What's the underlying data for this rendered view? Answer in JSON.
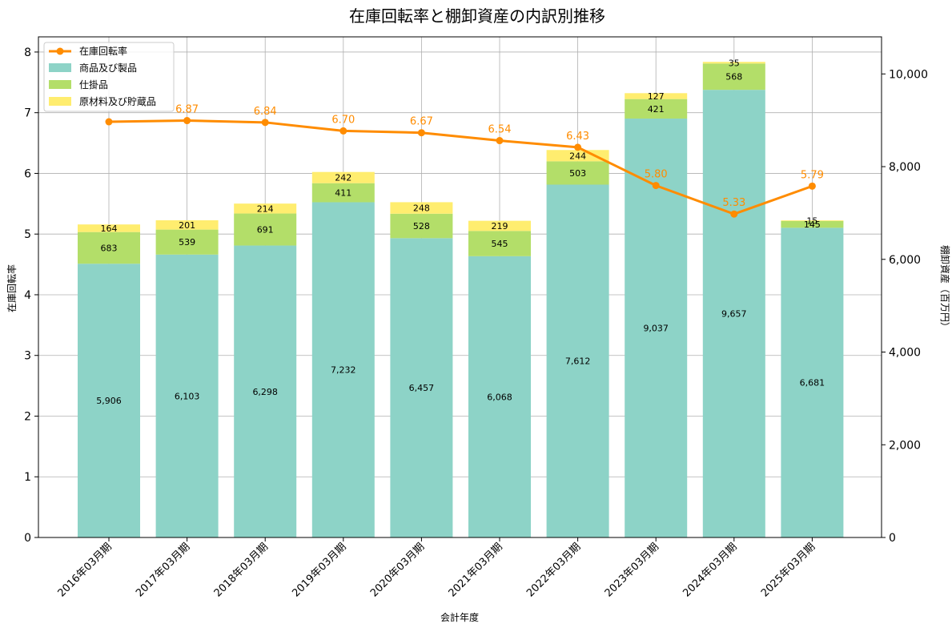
{
  "chart_data": {
    "type": "bar",
    "title": "在庫回転率と棚卸資産の内訳別推移",
    "xlabel": "会計年度",
    "ylabel_left": "在庫回転率",
    "ylabel_right": "棚卸資産（百万円）",
    "categories": [
      "2016年03月期",
      "2017年03月期",
      "2018年03月期",
      "2019年03月期",
      "2020年03月期",
      "2021年03月期",
      "2022年03月期",
      "2023年03月期",
      "2024年03月期",
      "2025年03月期"
    ],
    "bar_series": [
      {
        "name": "商品及び製品",
        "color": "#8dd3c7",
        "values": [
          5906,
          6103,
          6298,
          7232,
          6457,
          6068,
          7612,
          9037,
          9657,
          6681
        ]
      },
      {
        "name": "仕掛品",
        "color": "#b3de69",
        "values": [
          683,
          539,
          691,
          411,
          528,
          545,
          503,
          421,
          568,
          145
        ]
      },
      {
        "name": "原材料及び貯蔵品",
        "color": "#ffed6f",
        "values": [
          164,
          201,
          214,
          242,
          248,
          219,
          244,
          127,
          35,
          15
        ]
      }
    ],
    "line_series": {
      "name": "在庫回転率",
      "color": "#ff8c00",
      "values": [
        6.85,
        6.87,
        6.84,
        6.7,
        6.67,
        6.54,
        6.43,
        5.8,
        5.33,
        5.79
      ]
    },
    "line_labels": [
      "",
      "6.87",
      "6.84",
      "6.70",
      "6.67",
      "6.54",
      "6.43",
      "5.80",
      "5.33",
      "5.79"
    ],
    "bar_labels": [
      [
        "5,906",
        "6,103",
        "6,298",
        "7,232",
        "6,457",
        "6,068",
        "7,612",
        "9,037",
        "9,657",
        "6,681"
      ],
      [
        "683",
        "539",
        "691",
        "411",
        "528",
        "545",
        "503",
        "421",
        "568",
        "145"
      ],
      [
        "164",
        "201",
        "214",
        "242",
        "248",
        "219",
        "244",
        "127",
        "35",
        "15"
      ]
    ],
    "y_left_range": [
      0,
      8.25
    ],
    "y_left_ticks": [
      "0",
      "1",
      "2",
      "3",
      "4",
      "5",
      "6",
      "7",
      "8"
    ],
    "y_right_range": [
      0,
      10800
    ],
    "y_right_ticks": [
      "0",
      "2,000",
      "4,000",
      "6,000",
      "8,000",
      "10,000"
    ],
    "grid": true,
    "legend_position": "top-left"
  }
}
